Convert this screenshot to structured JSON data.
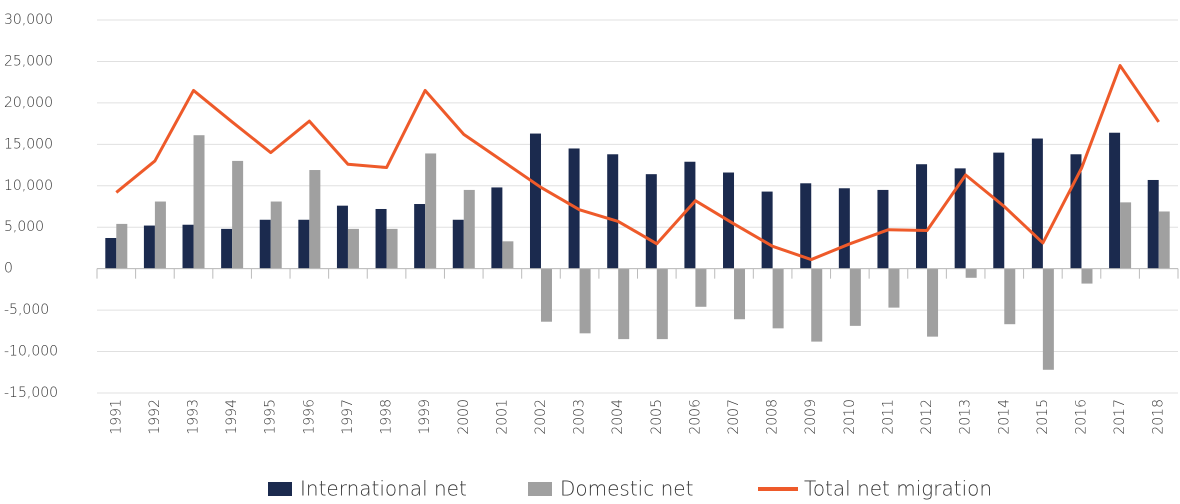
{
  "chart_data": {
    "type": "bar",
    "categories": [
      "1991",
      "1992",
      "1993",
      "1994",
      "1995",
      "1996",
      "1997",
      "1998",
      "1999",
      "2000",
      "2001",
      "2002",
      "2003",
      "2004",
      "2005",
      "2006",
      "2007",
      "2008",
      "2009",
      "2010",
      "2011",
      "2012",
      "2013",
      "2014",
      "2015",
      "2016",
      "2017",
      "2018"
    ],
    "series": [
      {
        "name": "International net",
        "type": "bar",
        "color": "#1b2a4e",
        "values": [
          3700,
          5200,
          5300,
          4800,
          5900,
          5900,
          7600,
          7200,
          7800,
          5900,
          9800,
          16300,
          14500,
          13800,
          11400,
          12900,
          11600,
          9300,
          10300,
          9700,
          9500,
          12600,
          12100,
          14000,
          15700,
          13800,
          16400,
          10700
        ]
      },
      {
        "name": "Domestic net",
        "type": "bar",
        "color": "#a0a0a0",
        "values": [
          5400,
          8100,
          16100,
          13000,
          8100,
          11900,
          4800,
          4800,
          13900,
          9500,
          3300,
          -6400,
          -7800,
          -8500,
          -8500,
          -4600,
          -6100,
          -7200,
          -8800,
          -6900,
          -4700,
          -8200,
          -1100,
          -6700,
          -12200,
          -1800,
          8000,
          6900
        ]
      },
      {
        "name": "Total net migration",
        "type": "line",
        "color": "#ee5a2a",
        "values": [
          9200,
          13000,
          21500,
          17700,
          14000,
          17800,
          12600,
          12200,
          21500,
          16200,
          13000,
          9800,
          7100,
          5700,
          3000,
          8200,
          5400,
          2700,
          1100,
          3000,
          4700,
          4600,
          11300,
          7500,
          3100,
          12100,
          24500,
          17700
        ]
      }
    ],
    "ylim": [
      -15000,
      30000
    ],
    "yticks": [
      {
        "value": -15000,
        "label": "-15,000"
      },
      {
        "value": -10000,
        "label": "-10,000"
      },
      {
        "value": -5000,
        "label": "-5,000"
      },
      0,
      {
        "value": 5000,
        "label": "5,000"
      },
      {
        "value": 10000,
        "label": "10,000"
      },
      {
        "value": 15000,
        "label": "15,000"
      },
      {
        "value": 20000,
        "label": "20,000"
      },
      {
        "value": 25000,
        "label": "25,000"
      },
      {
        "value": 30000,
        "label": "30,000"
      }
    ],
    "grid": true,
    "legend": "bottom"
  }
}
